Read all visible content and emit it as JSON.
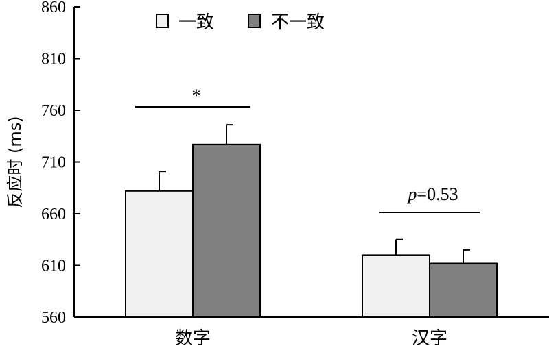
{
  "chart_data": {
    "type": "bar",
    "categories": [
      "数字",
      "汉字"
    ],
    "series": [
      {
        "name": "一致",
        "color": "#f0f0f0",
        "values": [
          682,
          620
        ],
        "errors": [
          19,
          15
        ]
      },
      {
        "name": "不一致",
        "color": "#808080",
        "values": [
          727,
          612
        ],
        "errors": [
          19,
          13
        ]
      }
    ],
    "title": "",
    "xlabel": "",
    "ylabel": "反应时 (ms)",
    "ylim": [
      560,
      860
    ],
    "yticks": [
      560,
      610,
      660,
      710,
      760,
      810,
      860
    ],
    "legend_position": "top-center",
    "grid": false,
    "annotations": [
      {
        "category": "数字",
        "text": "*"
      },
      {
        "category": "汉字",
        "text_italic": "p",
        "text": "=0.53"
      }
    ]
  }
}
